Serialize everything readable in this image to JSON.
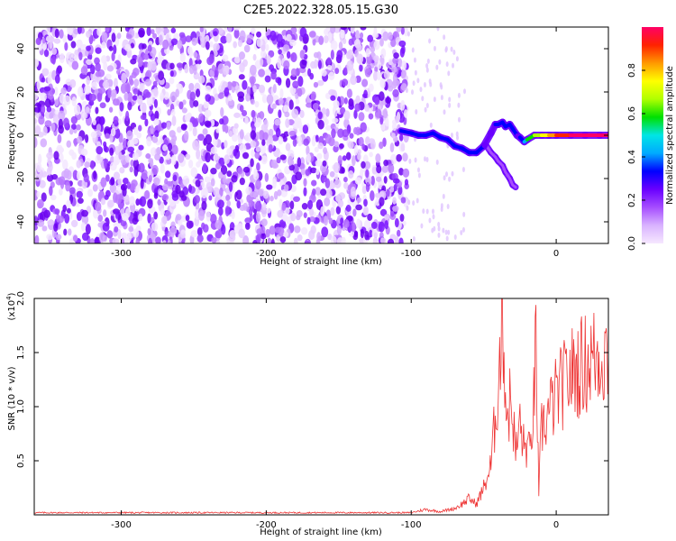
{
  "title": "C2E5.2022.328.05.15.G30",
  "chart_data": [
    {
      "type": "heatmap",
      "title": "",
      "xlabel": "Height of straight line (km)",
      "ylabel": "Frequency (Hz)",
      "xlim": [
        -360,
        36
      ],
      "ylim": [
        -50,
        50
      ],
      "xticks": [
        -300,
        -200,
        -100,
        0
      ],
      "yticks": [
        -40,
        -20,
        0,
        20,
        40
      ],
      "colorbar": {
        "label": "Normalized spectral amplitude",
        "range": [
          0,
          1
        ],
        "ticks": [
          0.0,
          0.2,
          0.4,
          0.6,
          0.8
        ],
        "colormap": [
          "#f6e8ff",
          "#d9b3ff",
          "#a64dff",
          "#6a00ff",
          "#0000ff",
          "#00aaff",
          "#00e5e5",
          "#00e000",
          "#b0ff00",
          "#ffff00",
          "#ff9900",
          "#ff2200",
          "#ff0066"
        ]
      },
      "noise_region": {
        "x_range": [
          -360,
          -103
        ],
        "amplitude": "0.0-0.1"
      },
      "trace": {
        "x": [
          -107,
          -100,
          -95,
          -90,
          -85,
          -80,
          -75,
          -70,
          -65,
          -60,
          -55,
          -50,
          -45,
          -42,
          -40,
          -37,
          -35,
          -32,
          -30,
          -27,
          -25,
          -22,
          -20,
          -15,
          -10,
          -5,
          0,
          10,
          20,
          30,
          36
        ],
        "y": [
          2,
          1,
          0,
          0,
          1,
          -1,
          -2,
          -5,
          -6,
          -8,
          -8,
          -5,
          1,
          5,
          5,
          6,
          4,
          5,
          3,
          0,
          -1,
          -3,
          -2,
          0,
          0,
          0,
          0,
          0,
          0,
          0,
          0
        ],
        "amplitude": [
          0.35,
          0.3,
          0.3,
          0.35,
          0.35,
          0.35,
          0.3,
          0.35,
          0.3,
          0.3,
          0.3,
          0.25,
          0.25,
          0.3,
          0.35,
          0.35,
          0.35,
          0.35,
          0.3,
          0.25,
          0.3,
          0.4,
          0.55,
          0.65,
          0.75,
          0.85,
          0.95,
          1.0,
          1.0,
          1.0,
          1.0
        ]
      },
      "branch": {
        "x": [
          -48,
          -45,
          -42,
          -40,
          -37,
          -35,
          -32,
          -30,
          -28
        ],
        "y": [
          -5,
          -8,
          -10,
          -12,
          -14,
          -17,
          -20,
          -23,
          -24
        ],
        "amplitude": [
          0.2,
          0.2,
          0.2,
          0.2,
          0.2,
          0.2,
          0.15,
          0.15,
          0.15
        ]
      }
    },
    {
      "type": "line",
      "title": "",
      "xlabel": "Height of straight line (km)",
      "ylabel": "SNR (10 * v/v)",
      "y_scale_label": "(x10",
      "y_scale_exp": "4",
      "y_scale_close": ")",
      "xlim": [
        -360,
        36
      ],
      "ylim": [
        0,
        2.0
      ],
      "xticks": [
        -300,
        -200,
        -100,
        0
      ],
      "yticks": [
        0.5,
        1.0,
        1.5,
        2.0
      ],
      "series": [
        {
          "color": "#ee3333",
          "x": [
            -360,
            -300,
            -200,
            -120,
            -100,
            -90,
            -80,
            -70,
            -65,
            -60,
            -55,
            -50,
            -45,
            -42,
            -40,
            -38,
            -37,
            -35,
            -33,
            -32,
            -30,
            -28,
            -25,
            -22,
            -20,
            -18,
            -15,
            -14,
            -12,
            -11,
            -10,
            -8,
            -5,
            0,
            5,
            10,
            15,
            20,
            25,
            30,
            36
          ],
          "y": [
            0.02,
            0.02,
            0.02,
            0.02,
            0.02,
            0.05,
            0.03,
            0.06,
            0.1,
            0.15,
            0.1,
            0.25,
            0.45,
            0.9,
            1.2,
            1.65,
            2.0,
            1.1,
            0.9,
            1.05,
            0.95,
            0.55,
            0.85,
            0.6,
            0.65,
            0.55,
            1.15,
            1.62,
            0.15,
            0.55,
            0.8,
            0.85,
            0.95,
            1.1,
            1.2,
            1.3,
            1.35,
            1.4,
            1.45,
            1.48,
            1.5
          ]
        }
      ]
    }
  ]
}
